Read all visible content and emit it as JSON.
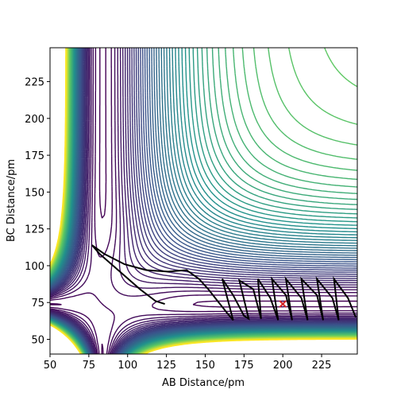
{
  "chart_data": {
    "type": "contour",
    "xlabel": "AB Distance/pm",
    "ylabel": "BC Distance/pm",
    "xlim": [
      50,
      248
    ],
    "ylim": [
      40,
      248
    ],
    "xticks": [
      50,
      75,
      100,
      125,
      150,
      175,
      200,
      225
    ],
    "yticks": [
      50,
      75,
      100,
      125,
      150,
      175,
      200,
      225
    ],
    "colors": [
      "#440154",
      "#3b528b",
      "#21918c",
      "#5ec962",
      "#fde725"
    ],
    "series": [
      {
        "name": "trajectory",
        "color": "#000000",
        "x": [
          124,
          118,
          108,
          95,
          82,
          77,
          85,
          98,
          112,
          126,
          138,
          146,
          152,
          158,
          164,
          168,
          161,
          168,
          175,
          178,
          172,
          181,
          186,
          184,
          192,
          197,
          193,
          202,
          206,
          202,
          212,
          216,
          212,
          222,
          226,
          222,
          232,
          236,
          233,
          242,
          247
        ],
        "y": [
          74,
          76,
          84,
          96,
          108,
          114,
          108,
          101,
          97,
          96,
          97,
          91,
          84,
          76,
          68,
          63,
          91,
          80,
          66,
          64,
          90,
          84,
          64,
          91,
          78,
          63,
          91,
          80,
          63,
          91,
          78,
          63,
          91,
          80,
          63,
          91,
          78,
          63,
          91,
          78,
          65
        ]
      },
      {
        "name": "start",
        "color": "#d62728",
        "x": [
          200
        ],
        "y": [
          74
        ]
      }
    ]
  }
}
